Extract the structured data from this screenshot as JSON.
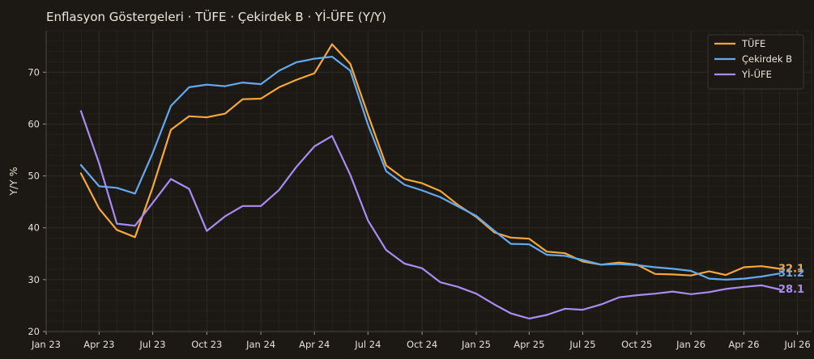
{
  "chart_data": {
    "type": "line",
    "title": "Enflasyon Göstergeleri · TÜFE · Çekirdek B · Yİ-ÜFE (Y/Y)",
    "xlabel": "",
    "ylabel": "Y/Y %",
    "ylim": [
      20,
      78
    ],
    "yticks": [
      20,
      30,
      40,
      50,
      60,
      70
    ],
    "x_range": [
      "2023-01-01",
      "2026-07-25"
    ],
    "xticks": [
      {
        "date": "2023-01-01",
        "label": "Jan 23"
      },
      {
        "date": "2023-04-01",
        "label": "Apr 23"
      },
      {
        "date": "2023-07-01",
        "label": "Jul 23"
      },
      {
        "date": "2023-10-01",
        "label": "Oct 23"
      },
      {
        "date": "2024-01-01",
        "label": "Jan 24"
      },
      {
        "date": "2024-04-01",
        "label": "Apr 24"
      },
      {
        "date": "2024-07-01",
        "label": "Jul 24"
      },
      {
        "date": "2024-10-01",
        "label": "Oct 24"
      },
      {
        "date": "2025-01-01",
        "label": "Jan 25"
      },
      {
        "date": "2025-04-01",
        "label": "Apr 25"
      },
      {
        "date": "2025-07-01",
        "label": "Jul 25"
      },
      {
        "date": "2025-10-01",
        "label": "Oct 25"
      },
      {
        "date": "2026-01-01",
        "label": "Jan 26"
      },
      {
        "date": "2026-04-01",
        "label": "Apr 26"
      },
      {
        "date": "2026-07-01",
        "label": "Jul 26"
      }
    ],
    "grid": true,
    "legend_position": "top-right",
    "x": [
      "2023-03-01",
      "2023-04-01",
      "2023-05-01",
      "2023-06-01",
      "2023-07-01",
      "2023-08-01",
      "2023-09-01",
      "2023-10-01",
      "2023-11-01",
      "2023-12-01",
      "2024-01-01",
      "2024-02-01",
      "2024-03-01",
      "2024-04-01",
      "2024-05-01",
      "2024-06-01",
      "2024-07-01",
      "2024-08-01",
      "2024-09-01",
      "2024-10-01",
      "2024-11-01",
      "2024-12-01",
      "2025-01-01",
      "2025-02-01",
      "2025-03-01",
      "2025-04-01",
      "2025-05-01",
      "2025-06-01",
      "2025-07-01",
      "2025-08-01",
      "2025-09-01",
      "2025-10-01",
      "2025-11-01",
      "2025-12-01",
      "2026-01-01",
      "2026-02-01",
      "2026-03-01",
      "2026-04-01",
      "2026-05-01",
      "2026-06-01"
    ],
    "series": [
      {
        "name": "TÜFE",
        "color": "#f6a83b",
        "values": [
          50.5,
          43.7,
          39.6,
          38.2,
          47.8,
          58.9,
          61.5,
          61.3,
          62.0,
          64.8,
          64.9,
          67.1,
          68.5,
          69.8,
          75.4,
          71.6,
          61.8,
          52.0,
          49.4,
          48.6,
          47.1,
          44.4,
          42.1,
          39.1,
          38.1,
          37.9,
          35.4,
          35.1,
          33.5,
          32.9,
          33.3,
          32.9,
          31.1,
          31.0,
          30.8,
          31.6,
          30.9,
          32.4,
          32.6,
          32.1
        ]
      },
      {
        "name": "Çekirdek B",
        "color": "#63a9ef",
        "values": [
          52.1,
          48.0,
          47.7,
          46.6,
          54.4,
          63.5,
          67.1,
          67.6,
          67.3,
          68.0,
          67.7,
          70.3,
          71.9,
          72.6,
          73.0,
          70.3,
          59.9,
          50.9,
          48.3,
          47.2,
          45.9,
          44.1,
          42.3,
          39.4,
          36.9,
          36.8,
          34.8,
          34.6,
          33.8,
          32.9,
          33.0,
          32.8,
          32.4,
          32.1,
          31.7,
          30.2,
          30.0,
          30.2,
          30.6,
          31.2
        ]
      },
      {
        "name": "Yİ-ÜFE",
        "color": "#a98cf2",
        "values": [
          62.5,
          52.4,
          40.8,
          40.4,
          44.8,
          49.4,
          47.5,
          39.4,
          42.2,
          44.2,
          44.2,
          47.3,
          51.7,
          55.7,
          57.7,
          50.2,
          41.4,
          35.7,
          33.1,
          32.2,
          29.5,
          28.6,
          27.3,
          25.2,
          23.5,
          22.5,
          23.2,
          24.4,
          24.2,
          25.2,
          26.6,
          27.0,
          27.3,
          27.7,
          27.2,
          27.6,
          28.2,
          28.6,
          28.9,
          28.1
        ]
      }
    ],
    "end_labels": [
      "32.1",
      "31.2",
      "28.1"
    ]
  }
}
